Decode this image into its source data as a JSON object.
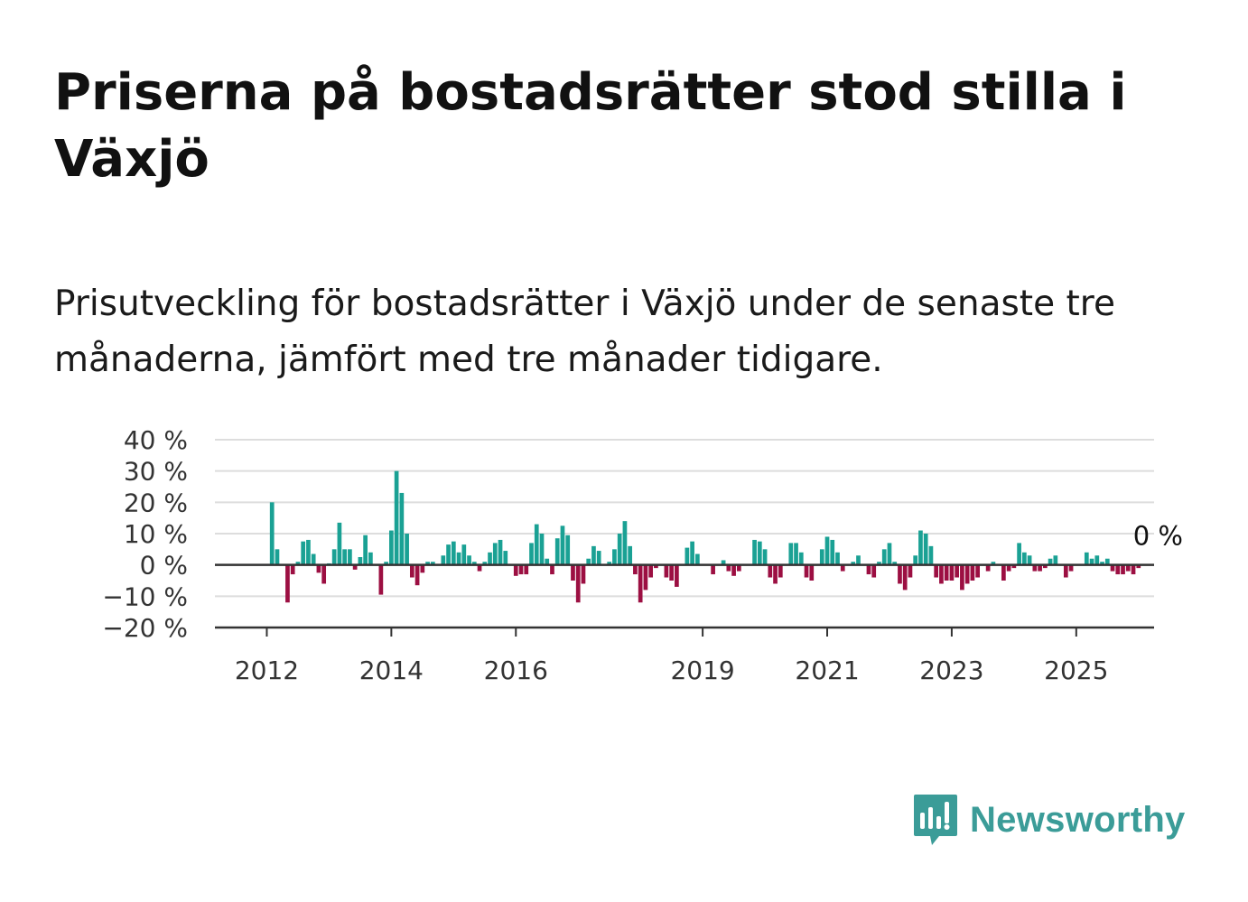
{
  "title": "Priserna på bostadsrätter stod stilla i Växjö",
  "subtitle": "Prisutveckling för bostadsrätter i Växjö under de senaste tre månaderna, jämfört med tre månader tidigare.",
  "end_label": "0 %",
  "brand": {
    "name": "Newsworthy",
    "color": "#3b9c98",
    "icon": "newsworthy-logo-icon"
  },
  "colors": {
    "positive": "#1aa194",
    "negative": "#9c0f42",
    "grid": "#dddddd",
    "axis": "#333333"
  },
  "chart_data": {
    "type": "bar",
    "title": "Priserna på bostadsrätter stod stilla i Växjö",
    "subtitle": "Prisutveckling för bostadsrätter i Växjö under de senaste tre månaderna, jämfört med tre månader tidigare.",
    "xlabel": "",
    "ylabel": "",
    "ylim": [
      -20,
      40
    ],
    "xlim": [
      "2011-03",
      "2026-04"
    ],
    "grid": "horizontal",
    "legend": "none",
    "y_ticks": [
      "40 %",
      "30 %",
      "20 %",
      "10 %",
      "0 %",
      "−10 %",
      "−20 %"
    ],
    "y_tick_values": [
      40,
      30,
      20,
      10,
      0,
      -10,
      -20
    ],
    "x_ticks": [
      "2012",
      "2014",
      "2016",
      "2019",
      "2021",
      "2023",
      "2025"
    ],
    "x_tick_values": [
      "2012-01",
      "2014-01",
      "2016-01",
      "2019-01",
      "2021-01",
      "2023-01",
      "2025-01"
    ],
    "start_month": "2012-01",
    "values": [
      0,
      20,
      5,
      0,
      -12,
      -3,
      1,
      7.5,
      8,
      3.5,
      -2.5,
      -6,
      0.5,
      5,
      13.5,
      5,
      5,
      -1.5,
      2.5,
      9.5,
      4,
      0,
      -9.5,
      1,
      11,
      30,
      23,
      10,
      -4,
      -6.5,
      -2.5,
      1,
      1,
      0,
      3,
      6.5,
      7.5,
      4,
      6.5,
      3,
      1,
      -2,
      1,
      4,
      7,
      8,
      4.5,
      0,
      -3.5,
      -3,
      -3,
      7,
      13,
      10,
      2,
      -3,
      8.5,
      12.5,
      9.5,
      -5,
      -12,
      -6,
      2,
      6,
      4.5,
      0,
      1,
      5,
      10,
      14,
      6,
      -3,
      -12,
      -8,
      -4,
      -1,
      0,
      -4,
      -5,
      -7,
      0,
      5.5,
      7.5,
      3.5,
      0,
      0,
      -3,
      0,
      1.5,
      -2,
      -3.5,
      -2,
      0,
      0,
      8,
      7.5,
      5,
      -4,
      -6,
      -4,
      0,
      7,
      7,
      4,
      -4,
      -5,
      0,
      5,
      9,
      8,
      4,
      -2,
      0,
      1,
      3,
      0,
      -3,
      -4,
      1,
      5,
      7,
      1,
      -6,
      -8,
      -4,
      3,
      11,
      10,
      6,
      -4,
      -6,
      -5,
      -5,
      -4,
      -8,
      -6,
      -5,
      -4,
      0,
      -2,
      1,
      0,
      -5,
      -2,
      -1,
      7,
      4,
      3,
      -2,
      -2,
      -1,
      2,
      3,
      0,
      -4,
      -2,
      0,
      0,
      4,
      2,
      3,
      1,
      2,
      -2,
      -3,
      -3,
      -2,
      -3,
      -1,
      0,
      0,
      0
    ],
    "series": [
      {
        "values_ref": "values"
      }
    ]
  }
}
